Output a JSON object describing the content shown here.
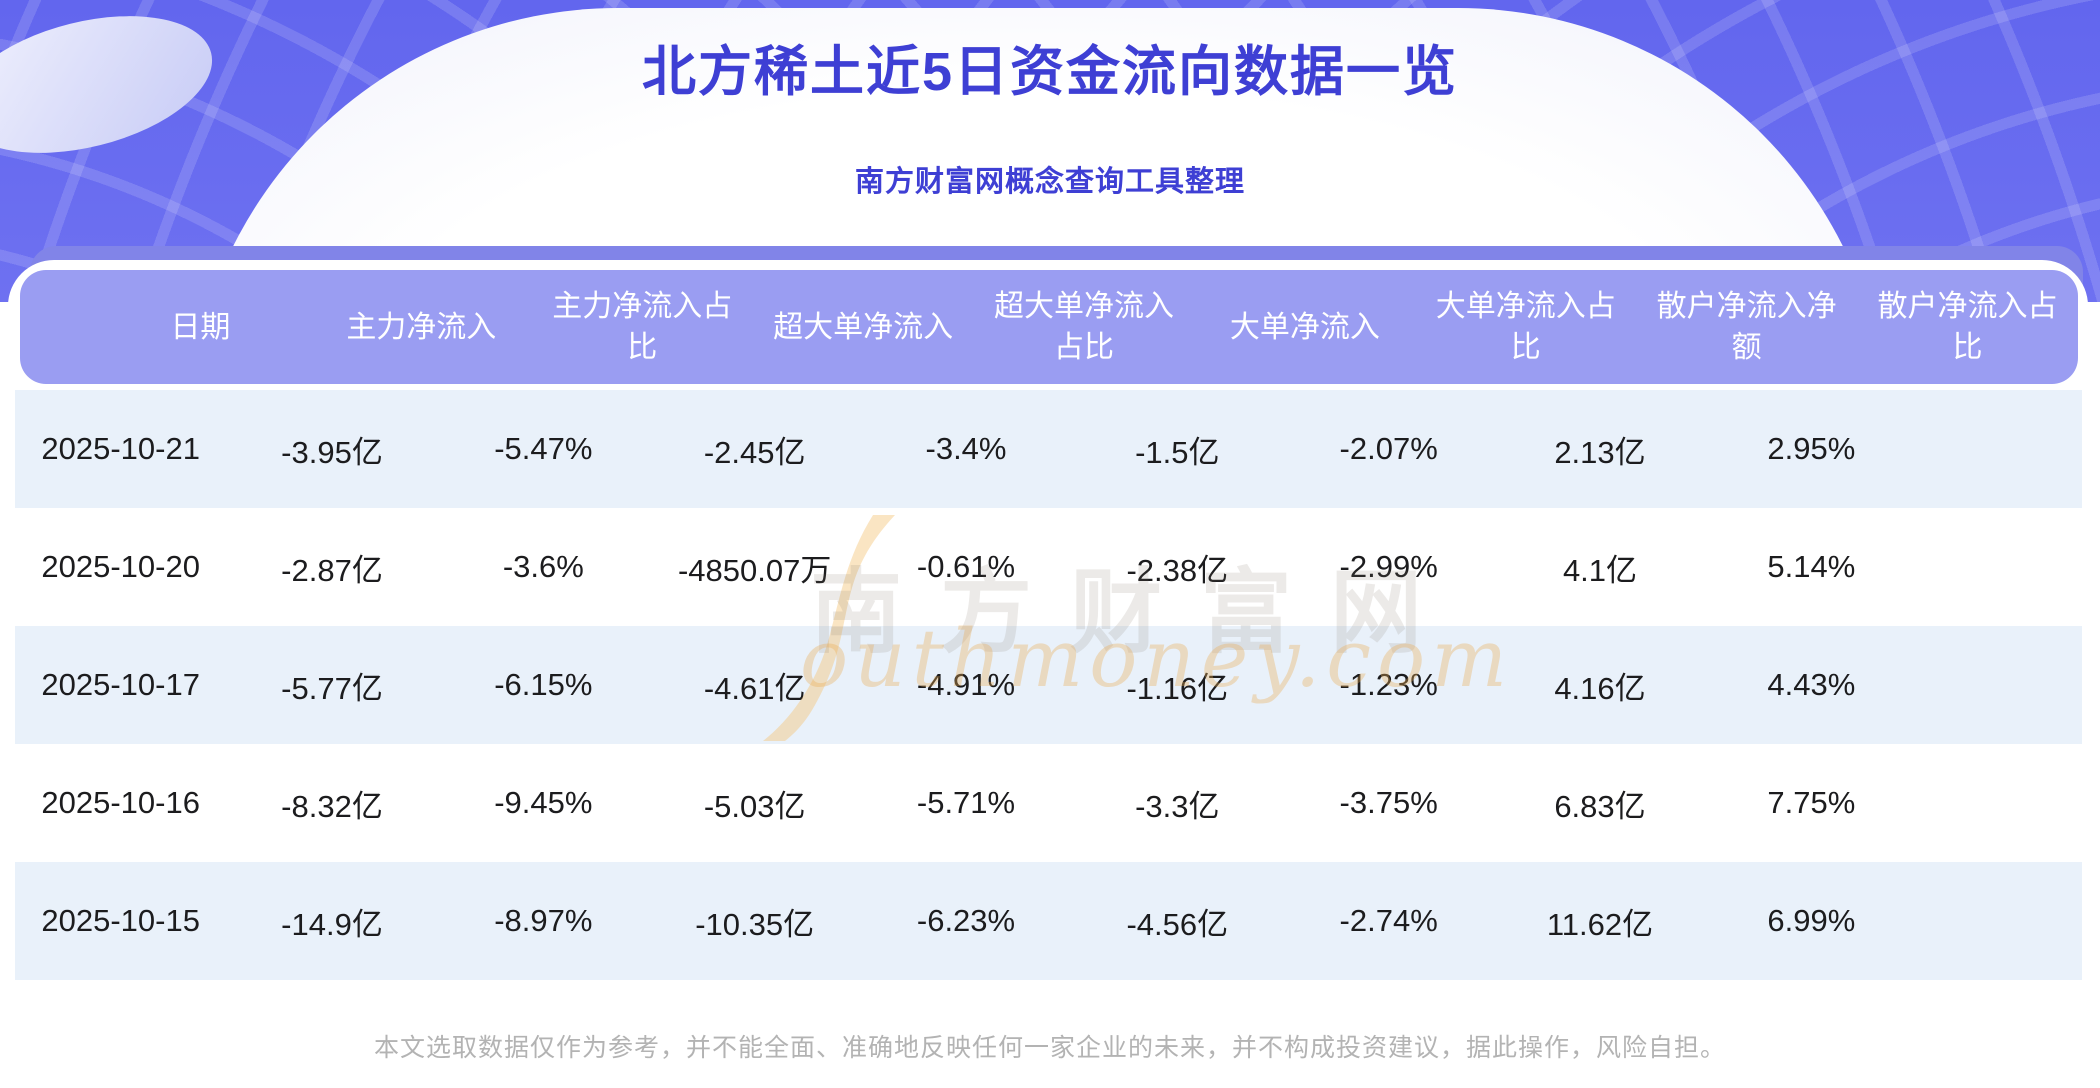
{
  "header": {
    "title": "北方稀土近5日资金流向数据一览",
    "subtitle": "南方财富网概念查询工具整理"
  },
  "chart_data": {
    "type": "table",
    "title": "北方稀土近5日资金流向数据一览",
    "columns": [
      "日期",
      "主力净流入",
      "主力净流入占比",
      "超大单净流入",
      "超大单净流入占比",
      "大单净流入",
      "大单净流入占比",
      "散户净流入净额",
      "散户净流入占比"
    ],
    "rows": [
      [
        "2025-10-21",
        "-3.95亿",
        "-5.47%",
        "-2.45亿",
        "-3.4%",
        "-1.5亿",
        "-2.07%",
        "2.13亿",
        "2.95%"
      ],
      [
        "2025-10-20",
        "-2.87亿",
        "-3.6%",
        "-4850.07万",
        "-0.61%",
        "-2.38亿",
        "-2.99%",
        "4.1亿",
        "5.14%"
      ],
      [
        "2025-10-17",
        "-5.77亿",
        "-6.15%",
        "-4.61亿",
        "-4.91%",
        "-1.16亿",
        "-1.23%",
        "4.16亿",
        "4.43%"
      ],
      [
        "2025-10-16",
        "-8.32亿",
        "-9.45%",
        "-5.03亿",
        "-5.71%",
        "-3.3亿",
        "-3.75%",
        "6.83亿",
        "7.75%"
      ],
      [
        "2025-10-15",
        "-14.9亿",
        "-8.97%",
        "-10.35亿",
        "-6.23%",
        "-4.56亿",
        "-2.74%",
        "11.62亿",
        "6.99%"
      ]
    ],
    "layout_hints": {
      "striped_rows": "odd rows light blue",
      "header_position": "top"
    }
  },
  "watermark": {
    "line1": "南方财富网",
    "line2": "outhmoney.com"
  },
  "footer": {
    "disclaimer": "本文选取数据仅作为参考，并不能全面、准确地反映任何一家企业的未来，并不构成投资建议，据此操作，风险自担。"
  },
  "colors": {
    "banner_purple": "#6266ee",
    "band_back_purple": "#8184e8",
    "header_band_purple": "#9a9df2",
    "title_blue": "#3e3fd4",
    "row_stripe_blue": "#e9f1fa",
    "body_text": "#1c1c1e",
    "footer_gray": "#b3b3b3",
    "watermark_orange": "#ecac52"
  }
}
